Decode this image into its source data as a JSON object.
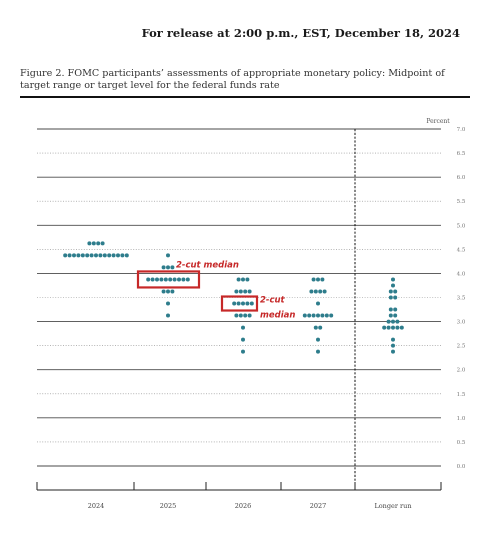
{
  "header": {
    "release_line": "For release at 2:00 p.m., EST, December 18, 2024",
    "figure_title": "Figure 2.  FOMC participants’ assessments of appropriate monetary policy:  Midpoint of target range or target level for the federal funds rate"
  },
  "colors": {
    "dot": "#2e7d8c",
    "annotation": "#c62828",
    "grid": "#555555"
  },
  "chart_data": {
    "type": "scatter",
    "title": "",
    "unit_label": "Percent",
    "ylim": [
      0.0,
      7.0
    ],
    "yticks": [
      7.0,
      6.5,
      6.0,
      5.5,
      5.0,
      4.5,
      4.0,
      3.5,
      3.0,
      2.5,
      2.0,
      1.5,
      1.0,
      0.5,
      0.0
    ],
    "ytick_labels": [
      "7.0",
      "6.5",
      "6.0",
      "5.5",
      "5.0",
      "4.5",
      "4.0",
      "3.5",
      "3.0",
      "2.5",
      "2.0",
      "1.5",
      "1.0",
      "0.5",
      "0.0"
    ],
    "categories": [
      "2024",
      "2025",
      "2026",
      "2027",
      "Longer run"
    ],
    "grid": true,
    "dots": [
      {
        "category": "2024",
        "rates": [
          {
            "rate": 4.625,
            "count": 4
          },
          {
            "rate": 4.375,
            "count": 15
          }
        ]
      },
      {
        "category": "2025",
        "rates": [
          {
            "rate": 4.375,
            "count": 1
          },
          {
            "rate": 4.125,
            "count": 3
          },
          {
            "rate": 3.875,
            "count": 10
          },
          {
            "rate": 3.625,
            "count": 3
          },
          {
            "rate": 3.375,
            "count": 1
          },
          {
            "rate": 3.125,
            "count": 1
          }
        ]
      },
      {
        "category": "2026",
        "rates": [
          {
            "rate": 3.875,
            "count": 3
          },
          {
            "rate": 3.625,
            "count": 4
          },
          {
            "rate": 3.375,
            "count": 5
          },
          {
            "rate": 3.125,
            "count": 4
          },
          {
            "rate": 2.875,
            "count": 1
          },
          {
            "rate": 2.625,
            "count": 1
          },
          {
            "rate": 2.375,
            "count": 1
          }
        ]
      },
      {
        "category": "2027",
        "rates": [
          {
            "rate": 3.875,
            "count": 3
          },
          {
            "rate": 3.625,
            "count": 4
          },
          {
            "rate": 3.375,
            "count": 1
          },
          {
            "rate": 3.125,
            "count": 7
          },
          {
            "rate": 2.875,
            "count": 2
          },
          {
            "rate": 2.625,
            "count": 1
          },
          {
            "rate": 2.375,
            "count": 1
          }
        ]
      },
      {
        "category": "Longer run",
        "rates": [
          {
            "rate": 3.875,
            "count": 1
          },
          {
            "rate": 3.75,
            "count": 1
          },
          {
            "rate": 3.625,
            "count": 2
          },
          {
            "rate": 3.5,
            "count": 2
          },
          {
            "rate": 3.25,
            "count": 2
          },
          {
            "rate": 3.125,
            "count": 2
          },
          {
            "rate": 3.0,
            "count": 3
          },
          {
            "rate": 2.875,
            "count": 5
          },
          {
            "rate": 2.625,
            "count": 1
          },
          {
            "rate": 2.5,
            "count": 1
          },
          {
            "rate": 2.375,
            "count": 1
          }
        ]
      }
    ],
    "annotations": [
      {
        "text": "2-cut median",
        "category": "2025",
        "rate": 3.875
      },
      {
        "text": "2-cut median",
        "category": "2026",
        "rate": 3.375
      }
    ]
  }
}
